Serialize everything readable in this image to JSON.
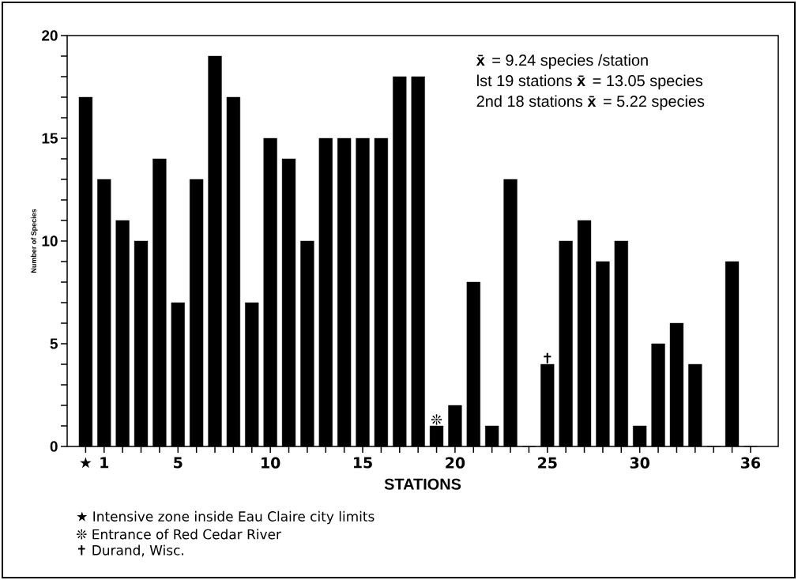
{
  "chart_data": {
    "type": "bar",
    "xlabel": "STATIONS",
    "ylabel": "Number of Species",
    "color": "#000000",
    "x": [
      0,
      1,
      2,
      3,
      4,
      5,
      6,
      7,
      8,
      9,
      10,
      11,
      12,
      13,
      14,
      15,
      16,
      17,
      18,
      19,
      20,
      21,
      22,
      23,
      24,
      25,
      26,
      27,
      28,
      29,
      30,
      31,
      32,
      33,
      34,
      35,
      36
    ],
    "values": [
      17,
      13,
      11,
      10,
      14,
      7,
      13,
      19,
      17,
      7,
      15,
      14,
      10,
      15,
      15,
      15,
      15,
      18,
      18,
      1,
      2,
      8,
      1,
      13,
      0,
      4,
      10,
      11,
      9,
      10,
      1,
      5,
      6,
      4,
      0,
      9,
      0
    ],
    "xlim": [
      -1,
      37.5
    ],
    "ylim": [
      0,
      20
    ],
    "xticks": [
      {
        "value": 0,
        "label": "★"
      },
      1,
      {
        "value": 2,
        "label": null
      },
      {
        "value": 3,
        "label": null
      },
      {
        "value": 4,
        "label": null
      },
      5,
      {
        "value": 6,
        "label": null
      },
      {
        "value": 7,
        "label": null
      },
      {
        "value": 8,
        "label": null
      },
      {
        "value": 9,
        "label": null
      },
      10,
      {
        "value": 11,
        "label": null
      },
      {
        "value": 12,
        "label": null
      },
      {
        "value": 13,
        "label": null
      },
      {
        "value": 14,
        "label": null
      },
      15,
      {
        "value": 16,
        "label": null
      },
      {
        "value": 17,
        "label": null
      },
      {
        "value": 18,
        "label": null
      },
      {
        "value": 19,
        "label": null
      },
      20,
      {
        "value": 21,
        "label": null
      },
      {
        "value": 22,
        "label": null
      },
      {
        "value": 23,
        "label": null
      },
      {
        "value": 24,
        "label": null
      },
      25,
      {
        "value": 26,
        "label": null
      },
      {
        "value": 27,
        "label": null
      },
      {
        "value": 28,
        "label": null
      },
      {
        "value": 29,
        "label": null
      },
      30,
      {
        "value": 31,
        "label": null
      },
      {
        "value": 32,
        "label": null
      },
      {
        "value": 33,
        "label": null
      },
      {
        "value": 34,
        "label": null
      },
      {
        "value": 35,
        "label": null
      },
      36
    ],
    "yticks": [
      0,
      {
        "value": 1,
        "label": null
      },
      {
        "value": 2,
        "label": null
      },
      {
        "value": 3,
        "label": null
      },
      {
        "value": 4,
        "label": null
      },
      5,
      {
        "value": 6,
        "label": null
      },
      {
        "value": 7,
        "label": null
      },
      {
        "value": 8,
        "label": null
      },
      {
        "value": 9,
        "label": null
      },
      10,
      {
        "value": 11,
        "label": null
      },
      {
        "value": 12,
        "label": null
      },
      {
        "value": 13,
        "label": null
      },
      {
        "value": 14,
        "label": null
      },
      15,
      {
        "value": 16,
        "label": null
      },
      {
        "value": 17,
        "label": null
      },
      {
        "value": 18,
        "label": null
      },
      {
        "value": 19,
        "label": null
      },
      20
    ],
    "annotations": [
      "**x̄** = 9.24 species /station",
      "lst 19 stations **x̄** = 13.05 species",
      "2nd 18 stations **x̄**  = 5.22 species",
      {
        "text": "❊",
        "x": 19,
        "y": 1
      },
      {
        "text": "✝",
        "x": 25,
        "y": 4
      },
      "★  Intensive zone inside Eau Claire city limits",
      "❊  Entrance of Red Cedar River",
      "✝  Durand, Wisc."
    ]
  }
}
